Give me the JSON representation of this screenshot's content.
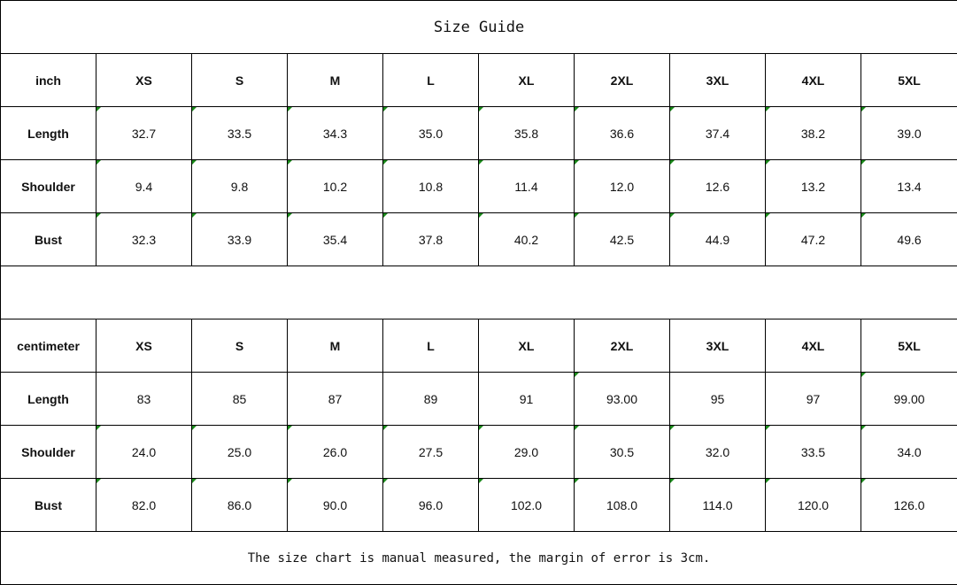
{
  "title": "Size Guide",
  "note": "The size chart is manual measured, the margin of error is 3cm.",
  "flag_color": "#1a8a1a",
  "sizes": [
    "XS",
    "S",
    "M",
    "L",
    "XL",
    "2XL",
    "3XL",
    "4XL",
    "5XL"
  ],
  "tables": [
    {
      "unit": "inch",
      "rows": [
        {
          "label": "Length",
          "values": [
            "32.7",
            "33.5",
            "34.3",
            "35.0",
            "35.8",
            "36.6",
            "37.4",
            "38.2",
            "39.0"
          ],
          "flags": [
            1,
            1,
            1,
            1,
            1,
            1,
            1,
            1,
            1
          ]
        },
        {
          "label": "Shoulder",
          "values": [
            "9.4",
            "9.8",
            "10.2",
            "10.8",
            "11.4",
            "12.0",
            "12.6",
            "13.2",
            "13.4"
          ],
          "flags": [
            1,
            1,
            1,
            1,
            1,
            1,
            1,
            1,
            1
          ]
        },
        {
          "label": "Bust",
          "values": [
            "32.3",
            "33.9",
            "35.4",
            "37.8",
            "40.2",
            "42.5",
            "44.9",
            "47.2",
            "49.6"
          ],
          "flags": [
            1,
            1,
            1,
            1,
            1,
            1,
            1,
            1,
            1
          ]
        }
      ]
    },
    {
      "unit": "centimeter",
      "rows": [
        {
          "label": "Length",
          "values": [
            "83",
            "85",
            "87",
            "89",
            "91",
            "93.00",
            "95",
            "97",
            "99.00"
          ],
          "flags": [
            0,
            0,
            0,
            0,
            0,
            1,
            0,
            0,
            1
          ]
        },
        {
          "label": "Shoulder",
          "values": [
            "24.0",
            "25.0",
            "26.0",
            "27.5",
            "29.0",
            "30.5",
            "32.0",
            "33.5",
            "34.0"
          ],
          "flags": [
            1,
            1,
            1,
            1,
            1,
            1,
            1,
            1,
            1
          ]
        },
        {
          "label": "Bust",
          "values": [
            "82.0",
            "86.0",
            "90.0",
            "96.0",
            "102.0",
            "108.0",
            "114.0",
            "120.0",
            "126.0"
          ],
          "flags": [
            1,
            1,
            1,
            1,
            1,
            1,
            1,
            1,
            1
          ]
        }
      ]
    }
  ]
}
